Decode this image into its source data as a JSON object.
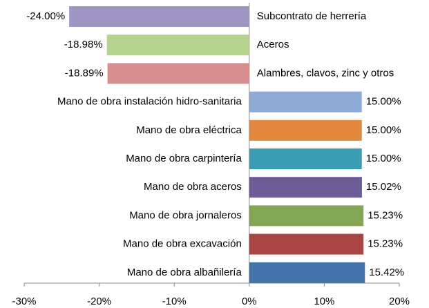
{
  "chart_data": {
    "type": "bar",
    "orientation": "horizontal",
    "categories": [
      "Subcontrato de herrería",
      "Aceros",
      "Alambres, clavos, zinc y otros",
      "Mano de obra instalación hidro-sanitaria",
      "Mano de obra eléctrica",
      "Mano de obra carpintería",
      "Mano de obra aceros",
      "Mano de obra jornaleros",
      "Mano de obra excavación",
      "Mano de obra albañilería"
    ],
    "values": [
      -24.0,
      -18.98,
      -18.89,
      15.0,
      15.0,
      15.0,
      15.02,
      15.23,
      15.23,
      15.42
    ],
    "value_labels": [
      "-24.00%",
      "-18.98%",
      "-18.89%",
      "15.00%",
      "15.00%",
      "15.00%",
      "15.02%",
      "15.23%",
      "15.23%",
      "15.42%"
    ],
    "colors": [
      "#a096c4",
      "#b5d38e",
      "#d68f8e",
      "#8eabd5",
      "#e2883f",
      "#3a9db3",
      "#6e5c98",
      "#83a556",
      "#a94543",
      "#4473a9"
    ],
    "xlim": [
      -30,
      20
    ],
    "xticks": [
      {
        "value": -30,
        "label": "-30%"
      },
      {
        "value": -20,
        "label": "-20%"
      },
      {
        "value": -10,
        "label": "-10%"
      },
      {
        "value": 0,
        "label": "0%"
      },
      {
        "value": 10,
        "label": "10%"
      },
      {
        "value": 20,
        "label": "20%"
      }
    ]
  }
}
